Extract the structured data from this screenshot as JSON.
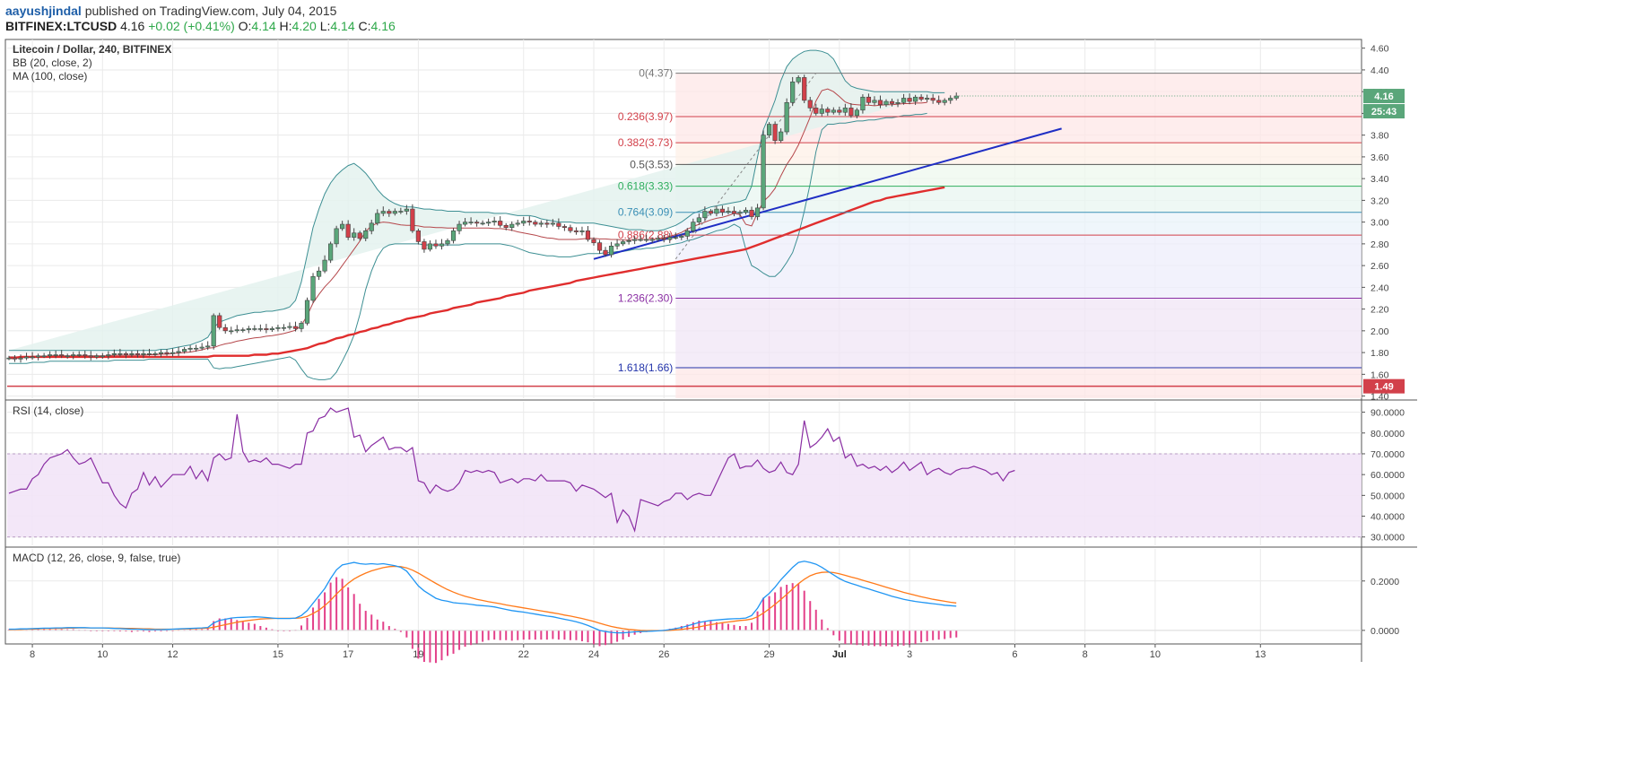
{
  "header": {
    "author": "aayushjindal",
    "published": "published on TradingView.com, July 04, 2015",
    "symbol": "BITFINEX:LTCUSD",
    "last": "4.16",
    "change": "+0.02 (+0.41%)",
    "o_label": "O:",
    "o_value": "4.14",
    "h_label": "H:",
    "h_value": "4.20",
    "l_label": "L:",
    "l_value": "4.14",
    "c_label": "C:",
    "c_value": "4.16"
  },
  "colors": {
    "bull": "#5aa67a",
    "bear": "#d2404a",
    "bb": "#3d8f93",
    "bb_fill": "#e4f2ef",
    "ma100": "#e02d2d",
    "trend": "#1f2ec4",
    "rsi": "#8a2ea3",
    "rsi_band": "#f2e4f7",
    "macd": "#2196f3",
    "signal": "#ff7a1a",
    "hist": "#e3418a"
  },
  "chart_data": [
    {
      "type": "candlestick",
      "legend": [
        "Litecoin / Dollar, 240, BITFINEX",
        "BB (20, close, 2)",
        "MA (100, close)"
      ],
      "x_ticks": [
        "8",
        "10",
        "12",
        "15",
        "17",
        "19",
        "22",
        "24",
        "26",
        "29",
        "Jul",
        "3",
        "6",
        "8",
        "10",
        "13"
      ],
      "ylim": [
        1.38,
        4.68
      ],
      "y_ticks": [
        "4.60",
        "4.40",
        "4.20",
        "4.00",
        "3.80",
        "3.60",
        "3.40",
        "3.20",
        "3.00",
        "2.80",
        "2.60",
        "2.40",
        "2.20",
        "2.00",
        "1.80",
        "1.60",
        "1.40"
      ],
      "price_labels": [
        {
          "value": 4.16,
          "text": "4.16",
          "color": "#5aa67a"
        },
        {
          "text": "25:43",
          "color": "#5aa67a"
        },
        {
          "value": 1.49,
          "text": "1.49",
          "color": "#d2404a"
        }
      ],
      "horizontal_line": {
        "value": 1.49,
        "color": "#d2404a"
      },
      "fib_levels": [
        {
          "ratio": "0",
          "value": 4.37,
          "label": "0(4.37)",
          "color": "#777777"
        },
        {
          "ratio": "0.236",
          "value": 3.97,
          "label": "0.236(3.97)",
          "color": "#d2404a"
        },
        {
          "ratio": "0.382",
          "value": 3.73,
          "label": "0.382(3.73)",
          "color": "#d2404a"
        },
        {
          "ratio": "0.5",
          "value": 3.53,
          "label": "0.5(3.53)",
          "color": "#555555"
        },
        {
          "ratio": "0.618",
          "value": 3.33,
          "label": "0.618(3.33)",
          "color": "#2fae5e"
        },
        {
          "ratio": "0.764",
          "value": 3.09,
          "label": "0.764(3.09)",
          "color": "#3a8fb5"
        },
        {
          "ratio": "0.886",
          "value": 2.88,
          "label": "0.886(2.88)",
          "color": "#d2404a"
        },
        {
          "ratio": "1.236",
          "value": 2.3,
          "label": "1.236(2.30)",
          "color": "#8a2ea3"
        },
        {
          "ratio": "1.618",
          "value": 1.66,
          "label": "1.618(1.66)",
          "color": "#2233aa"
        }
      ],
      "candles_close": [
        1.75,
        1.74,
        1.75,
        1.76,
        1.76,
        1.77,
        1.77,
        1.78,
        1.78,
        1.77,
        1.77,
        1.78,
        1.78,
        1.77,
        1.76,
        1.77,
        1.77,
        1.78,
        1.79,
        1.79,
        1.78,
        1.79,
        1.78,
        1.79,
        1.79,
        1.79,
        1.8,
        1.79,
        1.8,
        1.81,
        1.83,
        1.84,
        1.84,
        1.85,
        1.86,
        2.14,
        2.03,
        2.0,
        2.0,
        2.01,
        2.01,
        2.02,
        2.02,
        2.02,
        2.01,
        2.02,
        2.03,
        2.03,
        2.04,
        2.02,
        2.07,
        2.28,
        2.5,
        2.55,
        2.65,
        2.8,
        2.94,
        2.98,
        2.86,
        2.9,
        2.85,
        2.92,
        2.99,
        3.08,
        3.1,
        3.08,
        3.1,
        3.1,
        3.12,
        2.92,
        2.82,
        2.75,
        2.8,
        2.78,
        2.8,
        2.83,
        2.92,
        2.98,
        3.0,
        3.0,
        2.99,
        2.99,
        3.0,
        3.01,
        2.97,
        2.95,
        2.98,
        2.99,
        3.01,
        3.0,
        2.98,
        2.99,
        2.98,
        2.99,
        2.96,
        2.95,
        2.92,
        2.91,
        2.92,
        2.84,
        2.81,
        2.74,
        2.7,
        2.78,
        2.8,
        2.82,
        2.83,
        2.84,
        2.84,
        2.84,
        2.84,
        2.85,
        2.84,
        2.86,
        2.86,
        2.87,
        2.92,
        3.0,
        3.04,
        3.1,
        3.08,
        3.12,
        3.09,
        3.1,
        3.08,
        3.09,
        3.11,
        3.05,
        3.13,
        3.8,
        3.9,
        3.75,
        3.83,
        4.1,
        4.29,
        4.33,
        4.12,
        4.05,
        4.0,
        4.04,
        4.01,
        4.03,
        4.01,
        4.05,
        3.98,
        4.03,
        4.15,
        4.1,
        4.12,
        4.08,
        4.11,
        4.09,
        4.1,
        4.14,
        4.11,
        4.15,
        4.13,
        4.14,
        4.12,
        4.1,
        4.12,
        4.14,
        4.16
      ],
      "bb_upper": [
        1.82,
        1.82,
        1.82,
        1.82,
        1.82,
        1.82,
        1.82,
        1.82,
        1.82,
        1.82,
        1.82,
        1.82,
        1.82,
        1.82,
        1.82,
        1.82,
        1.82,
        1.82,
        1.82,
        1.82,
        1.82,
        1.82,
        1.82,
        1.82,
        1.82,
        1.82,
        1.83,
        1.83,
        1.84,
        1.85,
        1.86,
        1.87,
        1.89,
        1.91,
        1.94,
        2.03,
        2.08,
        2.1,
        2.12,
        2.14,
        2.15,
        2.16,
        2.17,
        2.17,
        2.18,
        2.18,
        2.19,
        2.2,
        2.22,
        2.28,
        2.45,
        2.7,
        2.95,
        3.12,
        3.26,
        3.36,
        3.43,
        3.48,
        3.52,
        3.54,
        3.5,
        3.45,
        3.38,
        3.3,
        3.24,
        3.2,
        3.17,
        3.15,
        3.14,
        3.14,
        3.13,
        3.12,
        3.12,
        3.11,
        3.11,
        3.1,
        3.1,
        3.1,
        3.09,
        3.09,
        3.09,
        3.09,
        3.09,
        3.08,
        3.08,
        3.08,
        3.07,
        3.06,
        3.06,
        3.06,
        3.05,
        3.03,
        3.02,
        3.01,
        3.0,
        3.0,
        3.0,
        2.99,
        2.99,
        2.99,
        2.99,
        2.98,
        2.97,
        2.96,
        2.95,
        2.94,
        2.93,
        2.93,
        2.93,
        2.92,
        2.92,
        2.92,
        2.93,
        2.95,
        2.97,
        3.0,
        3.04,
        3.08,
        3.1,
        3.12,
        3.14,
        3.15,
        3.16,
        3.17,
        3.18,
        3.19,
        3.21,
        3.33,
        3.6,
        3.85,
        3.98,
        4.12,
        4.3,
        4.43,
        4.5,
        4.54,
        4.57,
        4.58,
        4.58,
        4.57,
        4.55,
        4.5,
        4.4,
        4.3,
        4.25,
        4.23,
        4.22,
        4.21,
        4.2,
        4.2,
        4.2,
        4.2,
        4.2,
        4.2,
        4.2,
        4.2,
        4.2,
        4.2,
        4.19,
        4.19,
        4.19
      ],
      "bb_lower": [
        1.7,
        1.7,
        1.7,
        1.7,
        1.71,
        1.71,
        1.71,
        1.72,
        1.72,
        1.72,
        1.72,
        1.72,
        1.72,
        1.72,
        1.72,
        1.72,
        1.72,
        1.72,
        1.73,
        1.73,
        1.73,
        1.73,
        1.73,
        1.73,
        1.74,
        1.74,
        1.74,
        1.74,
        1.74,
        1.74,
        1.74,
        1.74,
        1.74,
        1.74,
        1.74,
        1.66,
        1.65,
        1.66,
        1.66,
        1.67,
        1.68,
        1.69,
        1.7,
        1.71,
        1.72,
        1.73,
        1.74,
        1.75,
        1.76,
        1.73,
        1.65,
        1.58,
        1.56,
        1.55,
        1.55,
        1.56,
        1.62,
        1.72,
        1.83,
        1.96,
        2.15,
        2.38,
        2.55,
        2.68,
        2.76,
        2.79,
        2.8,
        2.8,
        2.8,
        2.8,
        2.8,
        2.79,
        2.79,
        2.79,
        2.79,
        2.79,
        2.79,
        2.79,
        2.8,
        2.8,
        2.8,
        2.8,
        2.8,
        2.8,
        2.8,
        2.79,
        2.78,
        2.76,
        2.74,
        2.72,
        2.71,
        2.7,
        2.69,
        2.69,
        2.68,
        2.68,
        2.68,
        2.69,
        2.7,
        2.71,
        2.71,
        2.71,
        2.72,
        2.72,
        2.73,
        2.73,
        2.74,
        2.75,
        2.75,
        2.76,
        2.76,
        2.77,
        2.78,
        2.79,
        2.8,
        2.81,
        2.83,
        2.84,
        2.86,
        2.88,
        2.9,
        2.92,
        2.93,
        2.95,
        2.98,
        2.95,
        2.75,
        2.6,
        2.57,
        2.53,
        2.5,
        2.5,
        2.55,
        2.63,
        2.72,
        2.88,
        3.1,
        3.35,
        3.65,
        3.85,
        3.9,
        3.9,
        3.91,
        3.91,
        3.92,
        3.93,
        3.93,
        3.94,
        3.94,
        3.95,
        3.96,
        3.96,
        3.97,
        3.98,
        3.98,
        3.99,
        3.99,
        4.0
      ],
      "ma100": [
        1.75,
        1.75,
        1.76,
        1.76,
        1.76,
        1.76,
        1.76,
        1.76,
        1.76,
        1.76,
        1.76,
        1.76,
        1.76,
        1.76,
        1.76,
        1.76,
        1.76,
        1.76,
        1.76,
        1.76,
        1.76,
        1.76,
        1.76,
        1.76,
        1.76,
        1.76,
        1.76,
        1.76,
        1.76,
        1.76,
        1.76,
        1.76,
        1.76,
        1.76,
        1.76,
        1.77,
        1.77,
        1.77,
        1.77,
        1.77,
        1.77,
        1.77,
        1.78,
        1.78,
        1.78,
        1.79,
        1.79,
        1.8,
        1.81,
        1.82,
        1.83,
        1.84,
        1.86,
        1.88,
        1.89,
        1.91,
        1.93,
        1.94,
        1.96,
        1.97,
        1.99,
        2.0,
        2.02,
        2.03,
        2.05,
        2.06,
        2.08,
        2.09,
        2.11,
        2.12,
        2.13,
        2.14,
        2.16,
        2.17,
        2.18,
        2.19,
        2.21,
        2.22,
        2.23,
        2.24,
        2.26,
        2.27,
        2.28,
        2.29,
        2.3,
        2.32,
        2.33,
        2.34,
        2.35,
        2.37,
        2.38,
        2.39,
        2.4,
        2.41,
        2.42,
        2.43,
        2.44,
        2.46,
        2.47,
        2.48,
        2.49,
        2.5,
        2.51,
        2.52,
        2.53,
        2.54,
        2.55,
        2.56,
        2.57,
        2.58,
        2.59,
        2.6,
        2.61,
        2.62,
        2.63,
        2.64,
        2.65,
        2.66,
        2.67,
        2.68,
        2.69,
        2.7,
        2.71,
        2.72,
        2.73,
        2.74,
        2.75,
        2.77,
        2.79,
        2.81,
        2.83,
        2.85,
        2.87,
        2.89,
        2.91,
        2.93,
        2.95,
        2.97,
        2.99,
        3.01,
        3.03,
        3.05,
        3.07,
        3.09,
        3.11,
        3.13,
        3.15,
        3.17,
        3.19,
        3.2,
        3.22,
        3.23,
        3.24,
        3.25,
        3.26,
        3.27,
        3.28,
        3.29,
        3.3,
        3.31,
        3.32
      ],
      "trendline": {
        "from_index": 100,
        "from_value": 2.66,
        "to_index": 180,
        "to_value": 3.86
      }
    },
    {
      "type": "line",
      "legend": [
        "RSI (14, close)"
      ],
      "ylim": [
        26,
        95
      ],
      "y_ticks": [
        "90.0000",
        "80.0000",
        "70.0000",
        "60.0000",
        "50.0000",
        "40.0000",
        "30.0000"
      ],
      "band": [
        30,
        70
      ],
      "values": [
        51,
        52,
        53,
        53,
        58,
        60,
        65,
        68,
        69,
        70,
        72,
        68,
        65,
        66,
        68,
        62,
        56,
        56,
        50,
        46,
        44,
        51,
        53,
        61,
        55,
        59,
        54,
        57,
        60,
        60,
        60,
        64,
        58,
        62,
        57,
        68,
        70,
        67,
        68,
        89,
        71,
        66,
        67,
        66,
        68,
        65,
        65,
        64,
        63,
        65,
        65,
        80,
        81,
        87,
        88,
        92,
        90,
        91,
        92,
        78,
        79,
        71,
        74,
        76,
        78,
        72,
        73,
        73,
        71,
        73,
        57,
        56,
        51,
        55,
        53,
        52,
        53,
        56,
        62,
        61,
        62,
        61,
        62,
        61,
        56,
        57,
        58,
        56,
        58,
        58,
        57,
        60,
        57,
        57,
        57,
        57,
        56,
        52,
        55,
        54,
        53,
        51,
        49,
        51,
        37,
        43,
        40,
        33,
        48,
        47,
        46,
        45,
        47,
        48,
        51,
        51,
        48,
        50,
        51,
        50,
        50,
        56,
        62,
        68,
        70,
        63,
        64,
        64,
        67,
        63,
        61,
        62,
        66,
        61,
        60,
        65,
        86,
        73,
        75,
        78,
        82,
        76,
        78,
        68,
        70,
        64,
        65,
        63,
        64,
        62,
        64,
        61,
        63,
        66,
        62,
        64,
        66,
        60,
        62,
        63,
        61,
        60,
        62,
        63,
        63,
        64,
        63,
        62,
        60,
        61,
        57,
        61,
        62
      ],
      "line_color": "#8a2ea3"
    },
    {
      "type": "line",
      "legend": [
        "MACD (12, 26, close, 9, false, true)"
      ],
      "ylim": [
        -0.055,
        0.33
      ],
      "y_ticks": [
        "0.2000",
        "0.0000"
      ],
      "macd": [
        0.005,
        0.005,
        0.006,
        0.006,
        0.007,
        0.008,
        0.009,
        0.009,
        0.01,
        0.01,
        0.011,
        0.011,
        0.011,
        0.011,
        0.01,
        0.01,
        0.01,
        0.009,
        0.008,
        0.007,
        0.006,
        0.005,
        0.005,
        0.004,
        0.003,
        0.003,
        0.003,
        0.004,
        0.005,
        0.006,
        0.007,
        0.008,
        0.009,
        0.01,
        0.012,
        0.03,
        0.04,
        0.045,
        0.05,
        0.052,
        0.053,
        0.054,
        0.055,
        0.054,
        0.052,
        0.05,
        0.048,
        0.048,
        0.048,
        0.05,
        0.06,
        0.08,
        0.11,
        0.14,
        0.17,
        0.21,
        0.245,
        0.265,
        0.27,
        0.275,
        0.27,
        0.268,
        0.27,
        0.268,
        0.27,
        0.266,
        0.262,
        0.255,
        0.24,
        0.21,
        0.18,
        0.16,
        0.145,
        0.13,
        0.122,
        0.118,
        0.112,
        0.11,
        0.108,
        0.105,
        0.102,
        0.1,
        0.098,
        0.095,
        0.09,
        0.085,
        0.08,
        0.077,
        0.074,
        0.07,
        0.066,
        0.062,
        0.058,
        0.055,
        0.05,
        0.045,
        0.04,
        0.035,
        0.028,
        0.02,
        0.01,
        0.0,
        -0.005,
        -0.008,
        -0.01,
        -0.01,
        -0.008,
        -0.006,
        -0.005,
        -0.004,
        -0.003,
        -0.002,
        0.0,
        0.003,
        0.007,
        0.012,
        0.018,
        0.025,
        0.032,
        0.036,
        0.04,
        0.042,
        0.044,
        0.046,
        0.047,
        0.048,
        0.05,
        0.06,
        0.09,
        0.13,
        0.15,
        0.175,
        0.205,
        0.23,
        0.255,
        0.275,
        0.28,
        0.275,
        0.268,
        0.255,
        0.24,
        0.225,
        0.21,
        0.198,
        0.19,
        0.183,
        0.175,
        0.168,
        0.16,
        0.153,
        0.146,
        0.138,
        0.132,
        0.126,
        0.121,
        0.117,
        0.114,
        0.111,
        0.108,
        0.105,
        0.102,
        0.1,
        0.098
      ],
      "signal": [
        0.003,
        0.004,
        0.004,
        0.005,
        0.005,
        0.006,
        0.007,
        0.007,
        0.008,
        0.008,
        0.009,
        0.009,
        0.01,
        0.01,
        0.01,
        0.01,
        0.01,
        0.01,
        0.009,
        0.009,
        0.008,
        0.008,
        0.007,
        0.006,
        0.006,
        0.005,
        0.005,
        0.005,
        0.005,
        0.005,
        0.006,
        0.006,
        0.007,
        0.008,
        0.009,
        0.013,
        0.018,
        0.023,
        0.028,
        0.033,
        0.037,
        0.04,
        0.043,
        0.046,
        0.047,
        0.048,
        0.049,
        0.049,
        0.049,
        0.049,
        0.051,
        0.057,
        0.068,
        0.082,
        0.1,
        0.122,
        0.147,
        0.17,
        0.191,
        0.208,
        0.221,
        0.232,
        0.241,
        0.248,
        0.254,
        0.258,
        0.259,
        0.258,
        0.253,
        0.244,
        0.232,
        0.218,
        0.204,
        0.19,
        0.177,
        0.165,
        0.155,
        0.146,
        0.138,
        0.132,
        0.126,
        0.121,
        0.116,
        0.112,
        0.108,
        0.103,
        0.099,
        0.095,
        0.091,
        0.087,
        0.083,
        0.079,
        0.075,
        0.071,
        0.067,
        0.062,
        0.058,
        0.053,
        0.048,
        0.042,
        0.036,
        0.029,
        0.022,
        0.016,
        0.011,
        0.007,
        0.004,
        0.002,
        0.0,
        -0.001,
        -0.001,
        -0.001,
        -0.001,
        0.0,
        0.002,
        0.004,
        0.007,
        0.01,
        0.014,
        0.019,
        0.023,
        0.027,
        0.031,
        0.034,
        0.037,
        0.04,
        0.042,
        0.046,
        0.055,
        0.07,
        0.087,
        0.105,
        0.125,
        0.146,
        0.168,
        0.189,
        0.207,
        0.221,
        0.23,
        0.235,
        0.236,
        0.234,
        0.229,
        0.223,
        0.216,
        0.21,
        0.203,
        0.196,
        0.189,
        0.182,
        0.175,
        0.168,
        0.161,
        0.154,
        0.148,
        0.142,
        0.136,
        0.131,
        0.126,
        0.122,
        0.118,
        0.114,
        0.111
      ],
      "macd_color": "#2196f3",
      "signal_color": "#ff7a1a",
      "hist_color": "#e3418a"
    }
  ]
}
